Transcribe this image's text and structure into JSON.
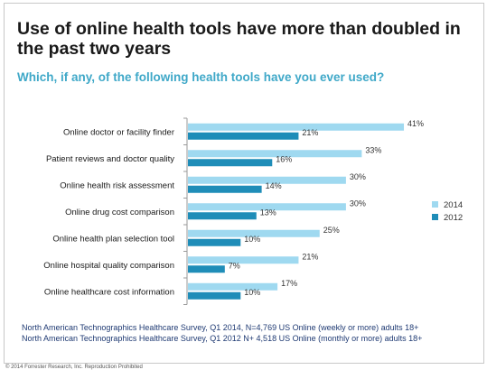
{
  "title": "Use of online health tools have more than doubled in the past two years",
  "subtitle": "Which, if any, of the following health tools have you ever used?",
  "footnotes": [
    "North American Technographics Healthcare Survey, Q1 2014, N=4,769 US Online (weekly or more) adults 18+",
    "North American Technographics Healthcare Survey, Q1 2012 N+ 4,518 US Online (monthly or more) adults 18+"
  ],
  "copyright": "© 2014 Forrester Research, Inc. Reproduction Prohibited",
  "chart_data": {
    "type": "bar",
    "orientation": "horizontal",
    "categories": [
      "Online doctor or facility finder",
      "Patient reviews and doctor quality",
      "Online health risk assessment",
      "Online drug cost comparison",
      "Online health plan selection tool",
      "Online hospital quality comparison",
      "Online healthcare cost information"
    ],
    "series": [
      {
        "name": "2014",
        "color": "#9fd9f0",
        "values": [
          41,
          33,
          30,
          30,
          25,
          21,
          17
        ],
        "labels": [
          "41%",
          "33%",
          "30%",
          "30%",
          "25%",
          "21%",
          "17%"
        ]
      },
      {
        "name": "2012",
        "color": "#1f8db8",
        "values": [
          21,
          16,
          14,
          13,
          10,
          7,
          10
        ],
        "labels": [
          "21%",
          "16%",
          "14%",
          "13%",
          "10%",
          "7%",
          "10%"
        ]
      }
    ],
    "xlim": [
      0,
      45
    ],
    "legend_position": "right",
    "grid": false
  }
}
